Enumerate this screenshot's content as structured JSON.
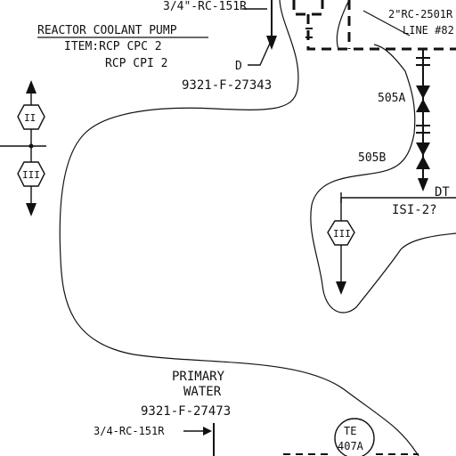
{
  "labels": {
    "top_line": "3/4\"-RC-151R",
    "rc_line_top": "2\"RC-2501R",
    "line_no": "LINE #82",
    "pump_title": "REACTOR COOLANT PUMP",
    "pump_item1": "ITEM:RCP CPC 2",
    "pump_item2": "RCP CPI 2",
    "tag_d": "D",
    "dwg_top": "9321-F-27343",
    "valve_505a": "505A",
    "valve_505b": "505B",
    "tag_dt": "DT",
    "isi_label": "ISI-2?",
    "hex_ii_left": "II",
    "hex_iii_left": "III",
    "hex_iii_right": "III",
    "primary1": "PRIMARY",
    "primary2": "WATER",
    "dwg_bottom": "9321-F-27473",
    "bottom_line": "3/4-RC-151R",
    "te_label": "TE",
    "te_num": "407A"
  }
}
